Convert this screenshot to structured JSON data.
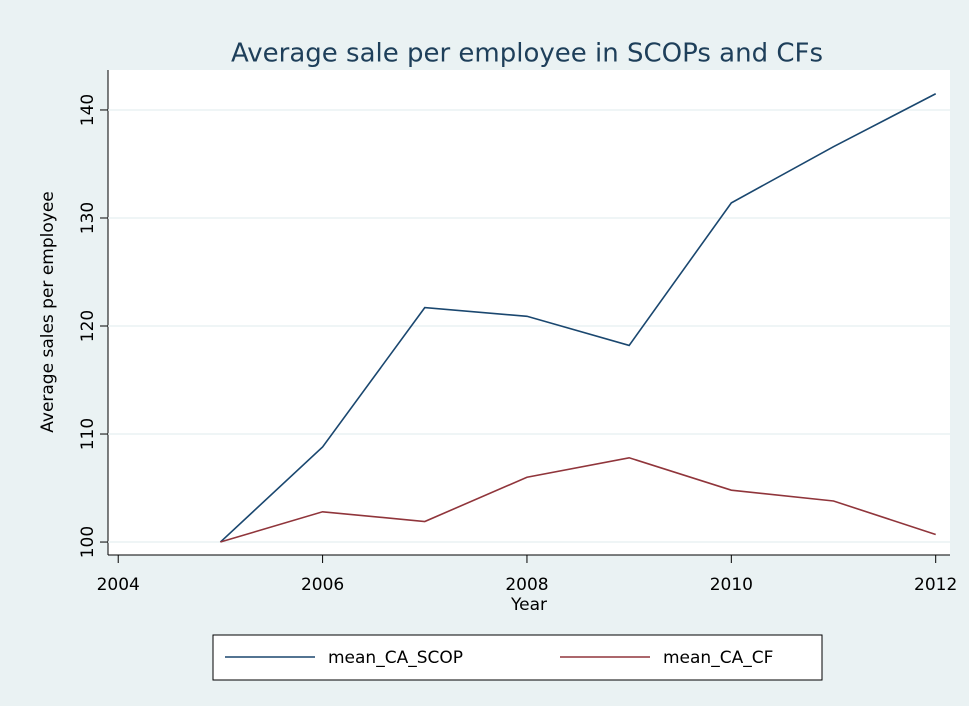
{
  "chart_data": {
    "type": "line",
    "title": "Average sale per employee in SCOPs and CFs",
    "x_label": "Year",
    "y_label": "Average sales per employee",
    "x": [
      2005,
      2006,
      2007,
      2008,
      2009,
      2010,
      2011,
      2012
    ],
    "series": [
      {
        "name": "mean_CA_SCOP",
        "color": "#1a476f",
        "values": [
          100,
          108.8,
          121.7,
          120.9,
          118.2,
          131.4,
          136.6,
          141.5
        ]
      },
      {
        "name": "mean_CA_CF",
        "color": "#90353b",
        "values": [
          100,
          102.8,
          101.9,
          106,
          107.8,
          104.8,
          103.8,
          100.7
        ]
      }
    ],
    "xlim": [
      2003.9,
      2012.14
    ],
    "xticks": [
      2004,
      2006,
      2008,
      2010,
      2012
    ],
    "ylim": [
      98.8,
      143.7
    ],
    "yticks": [
      100,
      110,
      120,
      130,
      140
    ],
    "grid": true,
    "legend": "bottom"
  }
}
